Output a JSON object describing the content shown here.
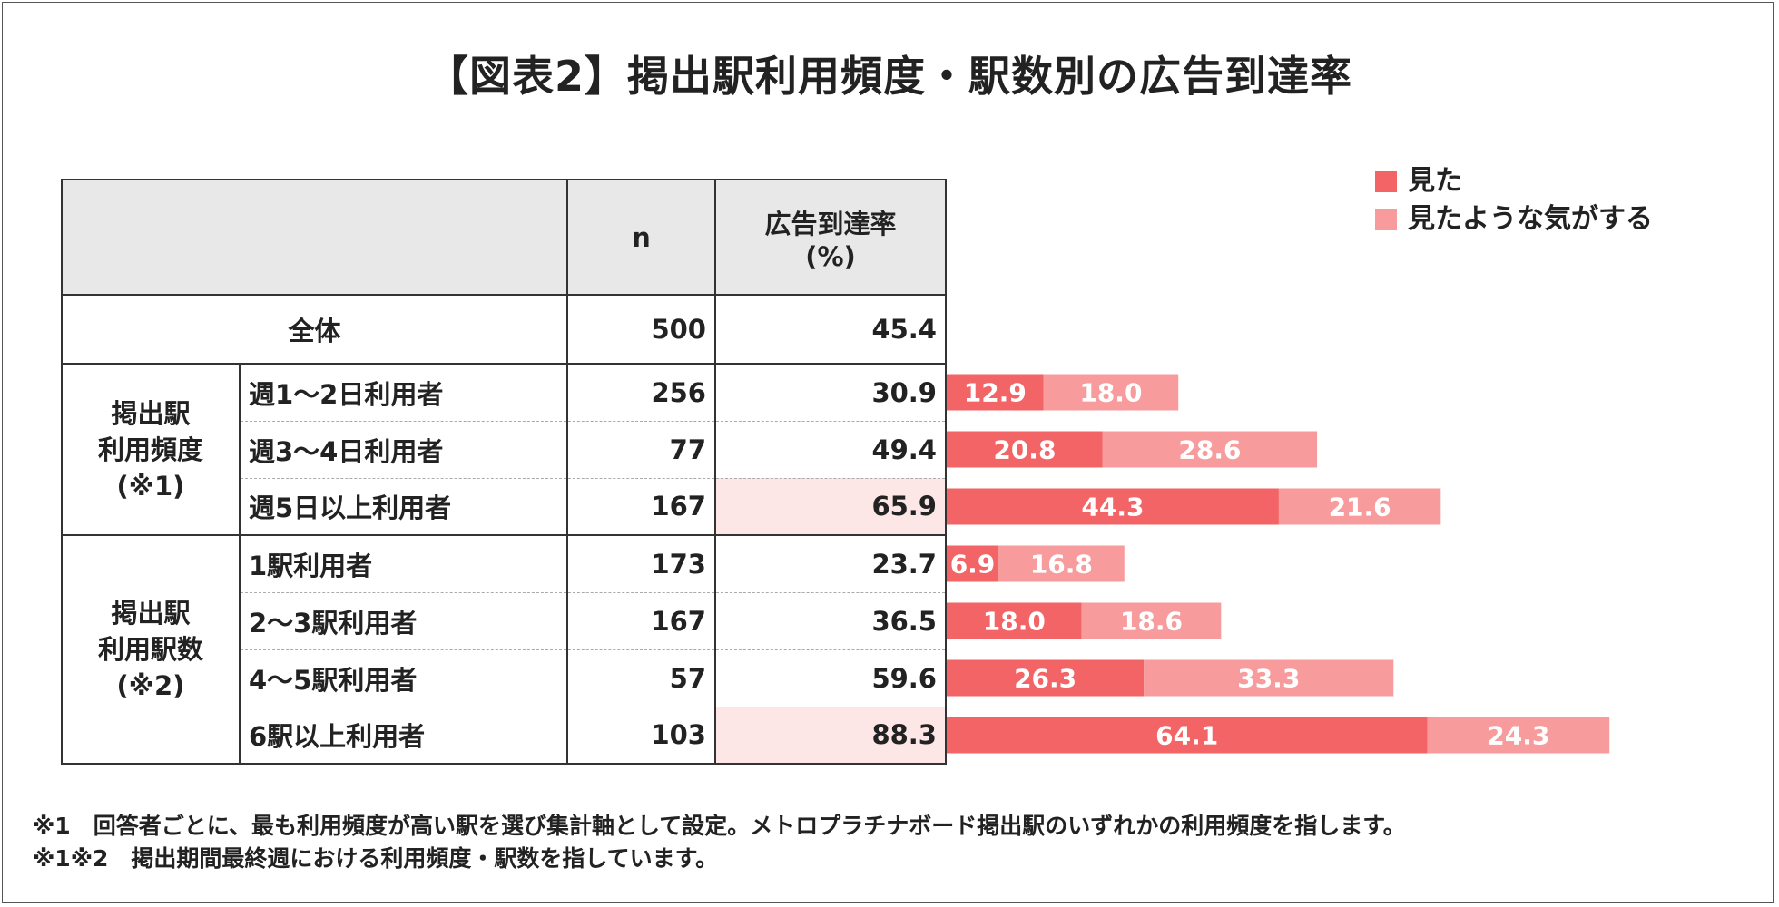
{
  "title": "【図表2】掲出駅利用頻度・駅数別の広告到達率",
  "table": {
    "headers": {
      "n": "n",
      "rate_line1": "広告到達率",
      "rate_line2": "(%)"
    },
    "overall": {
      "label": "全体",
      "n": "500",
      "rate": "45.4"
    },
    "group1": {
      "label_lines": [
        "掲出駅",
        "利用頻度",
        "(※1)"
      ]
    },
    "group2": {
      "label_lines": [
        "掲出駅",
        "利用駅数",
        "(※2)"
      ]
    },
    "rows": [
      {
        "label": "週1〜2日利用者",
        "n": "256",
        "rate": "30.9"
      },
      {
        "label": "週3〜4日利用者",
        "n": "77",
        "rate": "49.4"
      },
      {
        "label": "週5日以上利用者",
        "n": "167",
        "rate": "65.9"
      },
      {
        "label": "1駅利用者",
        "n": "173",
        "rate": "23.7"
      },
      {
        "label": "2〜3駅利用者",
        "n": "167",
        "rate": "36.5"
      },
      {
        "label": "4〜5駅利用者",
        "n": "57",
        "rate": "59.6"
      },
      {
        "label": "6駅以上利用者",
        "n": "103",
        "rate": "88.3"
      }
    ]
  },
  "chart_data": {
    "type": "bar",
    "orientation": "horizontal",
    "stacked": true,
    "categories": [
      "週1〜2日利用者",
      "週3〜4日利用者",
      "週5日以上利用者",
      "1駅利用者",
      "2〜3駅利用者",
      "4〜5駅利用者",
      "6駅以上利用者"
    ],
    "series": [
      {
        "name": "見た",
        "color": "#f26466",
        "values": [
          12.9,
          20.8,
          44.3,
          6.9,
          18.0,
          26.3,
          64.1
        ]
      },
      {
        "name": "見たような気がする",
        "color": "#f89b9c",
        "values": [
          18.0,
          28.6,
          21.6,
          16.8,
          18.6,
          33.3,
          24.3
        ]
      }
    ],
    "xlim": [
      0,
      100
    ]
  },
  "legend": {
    "seen": "見た",
    "maybe_seen": "見たような気がする"
  },
  "notes": [
    "※1　回答者ごとに、最も利用頻度が高い駅を選び集計軸として設定。メトロプラチナボード掲出駅のいずれかの利用頻度を指します。",
    "※1※2　掲出期間最終週における利用頻度・駅数を指しています。"
  ],
  "colors": {
    "highlight": "#fde6e6",
    "header": "#e8e8e8",
    "text": "#222222"
  }
}
